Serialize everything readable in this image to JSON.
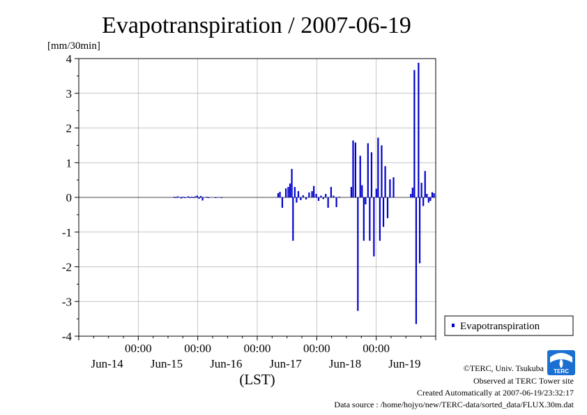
{
  "chart_data": {
    "type": "bar",
    "title": "Evapotranspiration / 2007-06-19",
    "ylabel": "[mm/30min]",
    "xlabel": "(LST)",
    "ylim": [
      -4,
      4
    ],
    "yticks": [
      "4",
      "3",
      "2",
      "1",
      "0",
      "-1",
      "-2",
      "-3",
      "-4"
    ],
    "xlim": [
      0,
      6
    ],
    "x_unit": "days since Jun-14 00:00",
    "xticks": [
      {
        "time": "",
        "date": "Jun-14"
      },
      {
        "time": "00:00",
        "date": "Jun-15"
      },
      {
        "time": "00:00",
        "date": "Jun-16"
      },
      {
        "time": "00:00",
        "date": "Jun-17"
      },
      {
        "time": "00:00",
        "date": "Jun-18"
      },
      {
        "time": "00:00",
        "date": "Jun-19"
      }
    ],
    "grid": true,
    "legend_position": "right-bottom",
    "series": [
      {
        "name": "Evapotranspiration",
        "color": "#0000cc",
        "x": [
          1.6,
          1.63,
          1.66,
          1.69,
          1.72,
          1.75,
          1.78,
          1.81,
          1.84,
          1.87,
          1.9,
          1.93,
          1.96,
          1.99,
          2.02,
          2.05,
          2.08,
          2.15,
          2.18,
          2.3,
          2.35,
          2.4,
          3.35,
          3.38,
          3.42,
          3.48,
          3.52,
          3.55,
          3.58,
          3.6,
          3.63,
          3.66,
          3.69,
          3.73,
          3.77,
          3.82,
          3.87,
          3.92,
          3.95,
          3.99,
          4.03,
          4.07,
          4.11,
          4.15,
          4.19,
          4.24,
          4.28,
          4.33,
          4.38,
          4.58,
          4.61,
          4.65,
          4.69,
          4.73,
          4.76,
          4.79,
          4.82,
          4.86,
          4.89,
          4.92,
          4.96,
          5.0,
          5.03,
          5.06,
          5.09,
          5.12,
          5.15,
          5.19,
          5.23,
          5.29,
          5.58,
          5.61,
          5.64,
          5.67,
          5.71,
          5.73,
          5.76,
          5.79,
          5.82,
          5.85,
          5.88,
          5.91,
          5.94,
          5.97
        ],
        "y": [
          0.02,
          -0.02,
          0.03,
          0.01,
          -0.03,
          0.02,
          -0.02,
          0.01,
          0.03,
          -0.02,
          0.02,
          0.0,
          0.03,
          0.05,
          -0.04,
          0.04,
          -0.09,
          0.02,
          -0.02,
          0.0,
          0.01,
          -0.01,
          0.12,
          0.16,
          -0.3,
          0.26,
          0.3,
          0.4,
          0.82,
          -1.25,
          0.3,
          -0.15,
          0.18,
          -0.08,
          0.06,
          -0.06,
          0.14,
          0.18,
          0.33,
          0.1,
          -0.1,
          0.05,
          -0.05,
          0.1,
          -0.3,
          0.3,
          0.05,
          -0.28,
          0.02,
          0.3,
          1.64,
          1.58,
          -3.27,
          1.2,
          0.35,
          -1.25,
          -0.2,
          1.56,
          -1.25,
          1.3,
          -1.7,
          0.25,
          1.72,
          -1.25,
          1.5,
          -0.85,
          0.9,
          -0.6,
          0.52,
          0.58,
          0.1,
          0.28,
          3.67,
          -3.65,
          3.88,
          -1.9,
          0.42,
          -0.25,
          0.76,
          0.1,
          -0.15,
          -0.1,
          0.15,
          0.12
        ]
      }
    ]
  },
  "credits": {
    "copyright": "©TERC, Univ. Tsukuba",
    "observed": "Observed at TERC Tower site",
    "created": "Created Automatically at 2007-06-19/23:32:17",
    "source": "Data source : /home/hojyo/new/TERC-data/sorted_data/FLUX.30m.dat"
  },
  "logo": {
    "text": "TERC",
    "icon": "terc-logo-icon",
    "color": "#1a6fd1"
  }
}
